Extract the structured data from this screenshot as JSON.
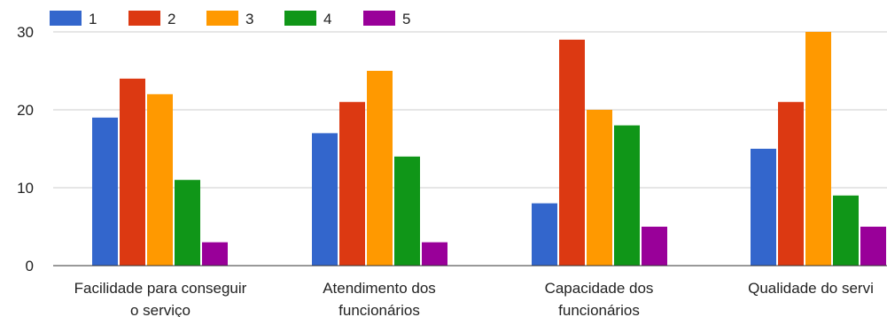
{
  "chart_data": {
    "type": "bar",
    "categories": [
      [
        "Facilidade para conseguir",
        "o serviço"
      ],
      [
        "Atendimento dos",
        "funcionários"
      ],
      [
        "Capacidade dos",
        "funcionários"
      ],
      [
        "Qualidade do servi"
      ]
    ],
    "series": [
      {
        "name": "1",
        "color": "#3366cc",
        "values": [
          19,
          17,
          8,
          15
        ]
      },
      {
        "name": "2",
        "color": "#dc3912",
        "values": [
          24,
          21,
          29,
          21
        ]
      },
      {
        "name": "3",
        "color": "#ff9900",
        "values": [
          22,
          25,
          20,
          30
        ]
      },
      {
        "name": "4",
        "color": "#109618",
        "values": [
          11,
          14,
          18,
          9
        ]
      },
      {
        "name": "5",
        "color": "#990099",
        "values": [
          3,
          3,
          5,
          5
        ]
      }
    ],
    "yticks": [
      0,
      10,
      20,
      30
    ],
    "ylim": [
      0,
      30
    ],
    "grid": true,
    "legend_position": "top-left",
    "title": "",
    "xlabel": "",
    "ylabel": ""
  }
}
